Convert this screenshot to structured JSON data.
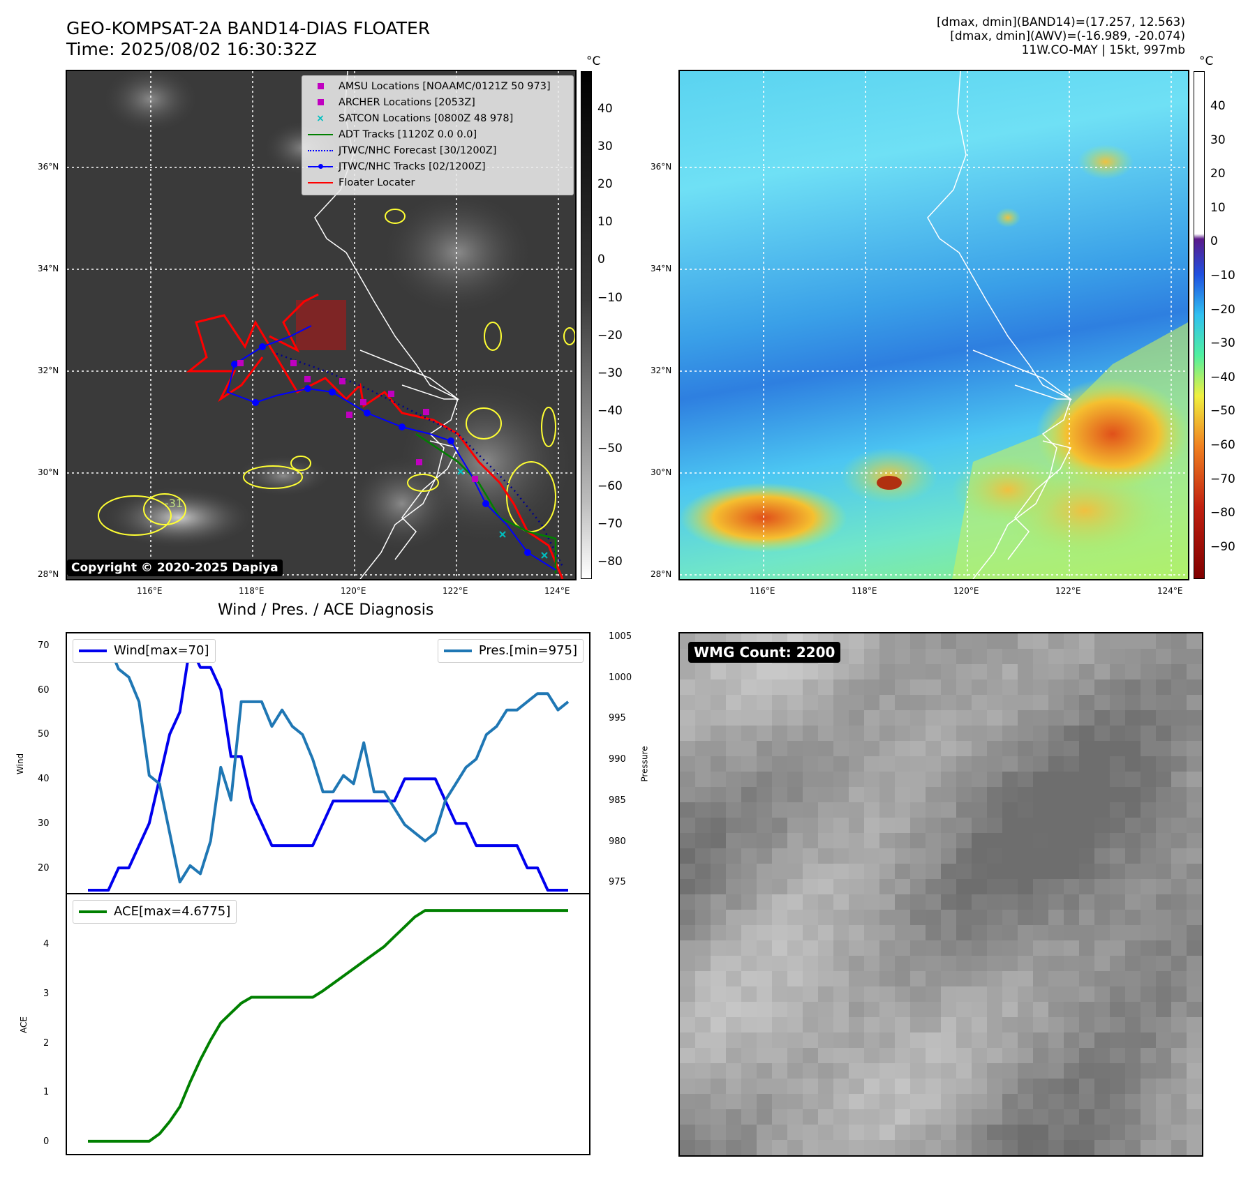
{
  "header": {
    "title_line1": "GEO-KOMPSAT-2A BAND14-DIAS FLOATER",
    "title_line2": "Time: 2025/08/02 16:30:32Z",
    "info_line1": "[dmax, dmin](BAND14)=(17.257, 12.563)",
    "info_line2": "[dmax, dmin](AWV)=(-16.989, -20.074)",
    "info_line3": "11W.CO-MAY | 15kt, 997mb"
  },
  "map": {
    "lat_ticks": [
      "36°N",
      "34°N",
      "32°N",
      "30°N",
      "28°N"
    ],
    "lon_ticks": [
      "116°E",
      "118°E",
      "120°E",
      "122°E",
      "124°E"
    ],
    "copyright": "Copyright © 2020-2025 Dapiya",
    "contour_label": "-31",
    "colors": {
      "coast": "#ffffff",
      "contour": "#ffff33",
      "track": "#0000ff",
      "floater": "#ff0000",
      "adt": "#008000",
      "satcon": "#00c0c0",
      "amsu": "#c000c0"
    }
  },
  "legend": {
    "amsu": "AMSU Locations [NOAAMC/0121Z 50 973]",
    "archer": "ARCHER Locations [2053Z]",
    "satcon": "SATCON Locations [0800Z 48 978]",
    "adt": "ADT Tracks [1120Z 0.0 0.0]",
    "forecast": "JTWC/NHC Forecast [30/1200Z]",
    "tracks": "JTWC/NHC Tracks [02/1200Z]",
    "floater": "Floater Locater"
  },
  "colorbar_left": {
    "unit": "°C",
    "ticks": [
      "40",
      "30",
      "20",
      "10",
      "0",
      "−10",
      "−20",
      "−30",
      "−40",
      "−50",
      "−60",
      "−70",
      "−80"
    ]
  },
  "colorbar_right": {
    "unit": "°C",
    "ticks": [
      "40",
      "30",
      "20",
      "10",
      "0",
      "−10",
      "−20",
      "−30",
      "−40",
      "−50",
      "−60",
      "−70",
      "−80",
      "−90"
    ]
  },
  "diagnosis": {
    "title": "Wind / Pres. / ACE Diagnosis",
    "wind_label": "Wind",
    "pressure_label": "Pressure",
    "ace_label": "ACE",
    "wind_legend": "Wind[max=70]",
    "pres_legend": "Pres.[min=975]",
    "ace_legend": "ACE[max=4.6775]",
    "wind_ticks": [
      "70",
      "60",
      "50",
      "40",
      "30",
      "20"
    ],
    "pres_ticks": [
      "1005",
      "1000",
      "995",
      "990",
      "985",
      "980",
      "975"
    ],
    "ace_ticks": [
      "4",
      "3",
      "2",
      "1",
      "0"
    ]
  },
  "wmg": {
    "label": "WMG Count: 2200"
  },
  "chart_data": [
    {
      "type": "line",
      "title": "Wind / Pres. / ACE Diagnosis",
      "ylabel": "Wind",
      "ylim": [
        15,
        72
      ],
      "series": [
        {
          "name": "Wind[max=70]",
          "color": "#0000ee",
          "values": [
            15,
            15,
            15,
            20,
            20,
            25,
            30,
            40,
            50,
            55,
            70,
            65,
            65,
            60,
            45,
            45,
            35,
            30,
            25,
            25,
            25,
            25,
            25,
            30,
            35,
            35,
            35,
            35,
            35,
            35,
            35,
            40,
            40,
            40,
            40,
            35,
            30,
            30,
            25,
            25,
            25,
            25,
            25,
            20,
            20,
            15,
            15,
            15
          ]
        }
      ]
    },
    {
      "type": "line",
      "ylabel": "Pressure",
      "ylim": [
        974,
        1005
      ],
      "series": [
        {
          "name": "Pres.[min=975]",
          "color": "#1f77b4",
          "values": [
            1004,
            1004,
            1004,
            1001,
            1000,
            997,
            988,
            987,
            981,
            975,
            977,
            976,
            980,
            989,
            985,
            997,
            997,
            997,
            994,
            996,
            994,
            993,
            990,
            986,
            986,
            988,
            987,
            992,
            986,
            986,
            984,
            982,
            981,
            980,
            981,
            985,
            987,
            989,
            990,
            993,
            994,
            996,
            996,
            997,
            998,
            998,
            996,
            997
          ]
        }
      ]
    },
    {
      "type": "line",
      "ylabel": "ACE",
      "ylim": [
        -0.2,
        4.95
      ],
      "series": [
        {
          "name": "ACE[max=4.6775]",
          "color": "#008000",
          "values": [
            0,
            0,
            0,
            0,
            0,
            0,
            0,
            0.15,
            0.4,
            0.7,
            1.2,
            1.65,
            2.05,
            2.4,
            2.6,
            2.8,
            2.92,
            2.92,
            2.92,
            2.92,
            2.92,
            2.92,
            2.92,
            3.05,
            3.2,
            3.35,
            3.5,
            3.65,
            3.8,
            3.95,
            4.15,
            4.35,
            4.55,
            4.68,
            4.68,
            4.68,
            4.68,
            4.68,
            4.68,
            4.68,
            4.68,
            4.68,
            4.68,
            4.68,
            4.68,
            4.68,
            4.68,
            4.68
          ]
        }
      ]
    }
  ]
}
